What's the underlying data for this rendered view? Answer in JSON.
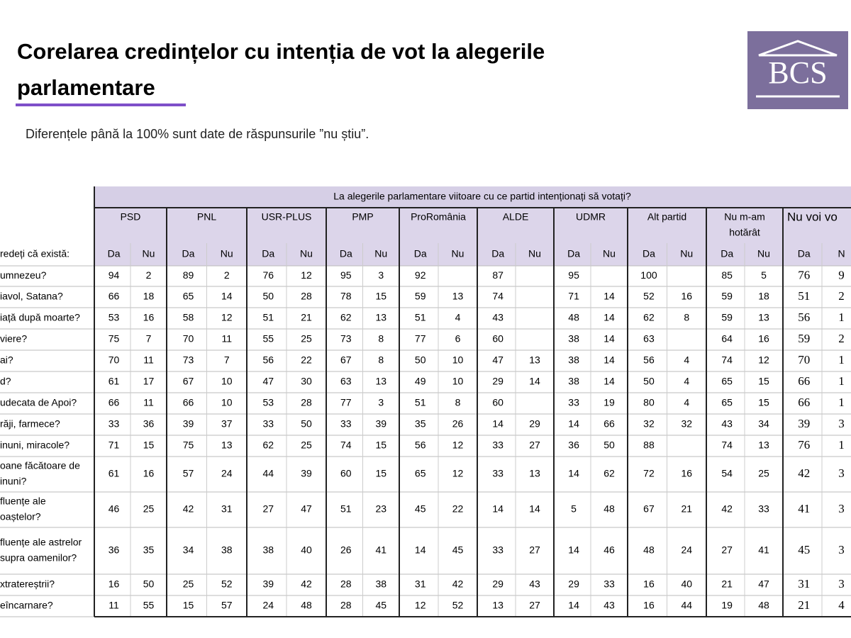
{
  "header": {
    "title_lines": [
      "Corelarea credințelor cu intenția de vot la alegerile",
      "parlamentare"
    ],
    "subtitle": "Diferențele până la 100% sunt date de răspunsurile ”nu știu”.",
    "logo": "BCS"
  },
  "table": {
    "title": "La alegerile parlamentare viitoare cu ce partid intenționați să votați?",
    "row_header": "redeți că există:",
    "parties": [
      [
        "PSD"
      ],
      [
        "PNL"
      ],
      [
        "USR-PLUS"
      ],
      [
        "PMP"
      ],
      [
        "ProRomânia"
      ],
      [
        "ALDE"
      ],
      [
        "UDMR"
      ],
      [
        "Alt partid"
      ],
      [
        "Nu m-am",
        "hotărât"
      ],
      [
        "Nu voi vo"
      ]
    ],
    "subheaders": [
      "Da",
      "Nu",
      "Da",
      "Nu",
      "Da",
      "Nu",
      "Da",
      "Nu",
      "Da",
      "Nu",
      "Da",
      "Nu",
      "Da",
      "Nu",
      "Da",
      "Nu",
      "Da",
      "Nu",
      "Da",
      "N"
    ],
    "rows": [
      {
        "label": [
          "umnezeu?"
        ],
        "cells": [
          "94",
          "2",
          "89",
          "2",
          "76",
          "12",
          "95",
          "3",
          "92",
          null,
          "87",
          null,
          "95",
          null,
          "100",
          null,
          "85",
          "5",
          "76",
          "9"
        ]
      },
      {
        "label": [
          "iavol, Satana?"
        ],
        "cells": [
          "66",
          "18",
          "65",
          "14",
          "50",
          "28",
          "78",
          "15",
          "59",
          "13",
          "74",
          null,
          "71",
          "14",
          "52",
          "16",
          "59",
          "18",
          "51",
          "2"
        ]
      },
      {
        "label": [
          "iață după moarte?"
        ],
        "cells": [
          "53",
          "16",
          "58",
          "12",
          "51",
          "21",
          "62",
          "13",
          "51",
          "4",
          "43",
          null,
          "48",
          "14",
          "62",
          "8",
          "59",
          "13",
          "56",
          "1"
        ]
      },
      {
        "label": [
          "viere?"
        ],
        "cells": [
          "75",
          "7",
          "70",
          "11",
          "55",
          "25",
          "73",
          "8",
          "77",
          "6",
          "60",
          null,
          "38",
          "14",
          "63",
          null,
          "64",
          "16",
          "59",
          "2"
        ]
      },
      {
        "label": [
          "ai?"
        ],
        "cells": [
          "70",
          "11",
          "73",
          "7",
          "56",
          "22",
          "67",
          "8",
          "50",
          "10",
          "47",
          "13",
          "38",
          "14",
          "56",
          "4",
          "74",
          "12",
          "70",
          "1"
        ]
      },
      {
        "label": [
          "d?"
        ],
        "cells": [
          "61",
          "17",
          "67",
          "10",
          "47",
          "30",
          "63",
          "13",
          "49",
          "10",
          "29",
          "14",
          "38",
          "14",
          "50",
          "4",
          "65",
          "15",
          "66",
          "1"
        ]
      },
      {
        "label": [
          "udecata de Apoi?"
        ],
        "cells": [
          "66",
          "11",
          "66",
          "10",
          "53",
          "28",
          "77",
          "3",
          "51",
          "8",
          "60",
          null,
          "33",
          "19",
          "80",
          "4",
          "65",
          "15",
          "66",
          "1"
        ]
      },
      {
        "label": [
          "răji, farmece?"
        ],
        "cells": [
          "33",
          "36",
          "39",
          "37",
          "33",
          "50",
          "33",
          "39",
          "35",
          "26",
          "14",
          "29",
          "14",
          "66",
          "32",
          "32",
          "43",
          "34",
          "39",
          "3"
        ]
      },
      {
        "label": [
          "inuni, miracole?"
        ],
        "cells": [
          "71",
          "15",
          "75",
          "13",
          "62",
          "25",
          "74",
          "15",
          "56",
          "12",
          "33",
          "27",
          "36",
          "50",
          "88",
          null,
          "74",
          "13",
          "76",
          "1"
        ]
      },
      {
        "label": [
          "oane făcătoare de",
          "inuni?"
        ],
        "cells": [
          "61",
          "16",
          "57",
          "24",
          "44",
          "39",
          "60",
          "15",
          "65",
          "12",
          "33",
          "13",
          "14",
          "62",
          "72",
          "16",
          "54",
          "25",
          "42",
          "3"
        ]
      },
      {
        "label": [
          "fluențe ale",
          "oaștelor?"
        ],
        "cells": [
          "46",
          "25",
          "42",
          "31",
          "27",
          "47",
          "51",
          "23",
          "45",
          "22",
          "14",
          "14",
          "5",
          "48",
          "67",
          "21",
          "42",
          "33",
          "41",
          "3"
        ]
      },
      {
        "label": [
          "fluențe ale astrelor",
          "supra oamenilor?"
        ],
        "cells": [
          "36",
          "35",
          "34",
          "38",
          "38",
          "40",
          "26",
          "41",
          "14",
          "45",
          "33",
          "27",
          "14",
          "46",
          "48",
          "24",
          "27",
          "41",
          "45",
          "3"
        ]
      },
      {
        "label": [
          "xtratereștrii?"
        ],
        "cells": [
          "16",
          "50",
          "25",
          "52",
          "39",
          "42",
          "28",
          "38",
          "31",
          "42",
          "29",
          "43",
          "29",
          "33",
          "16",
          "40",
          "21",
          "47",
          "31",
          "3"
        ]
      },
      {
        "label": [
          "eîncarnare?"
        ],
        "cells": [
          "11",
          "55",
          "15",
          "57",
          "24",
          "48",
          "28",
          "45",
          "12",
          "52",
          "13",
          "27",
          "14",
          "43",
          "16",
          "44",
          "19",
          "48",
          "21",
          "4"
        ]
      }
    ]
  }
}
